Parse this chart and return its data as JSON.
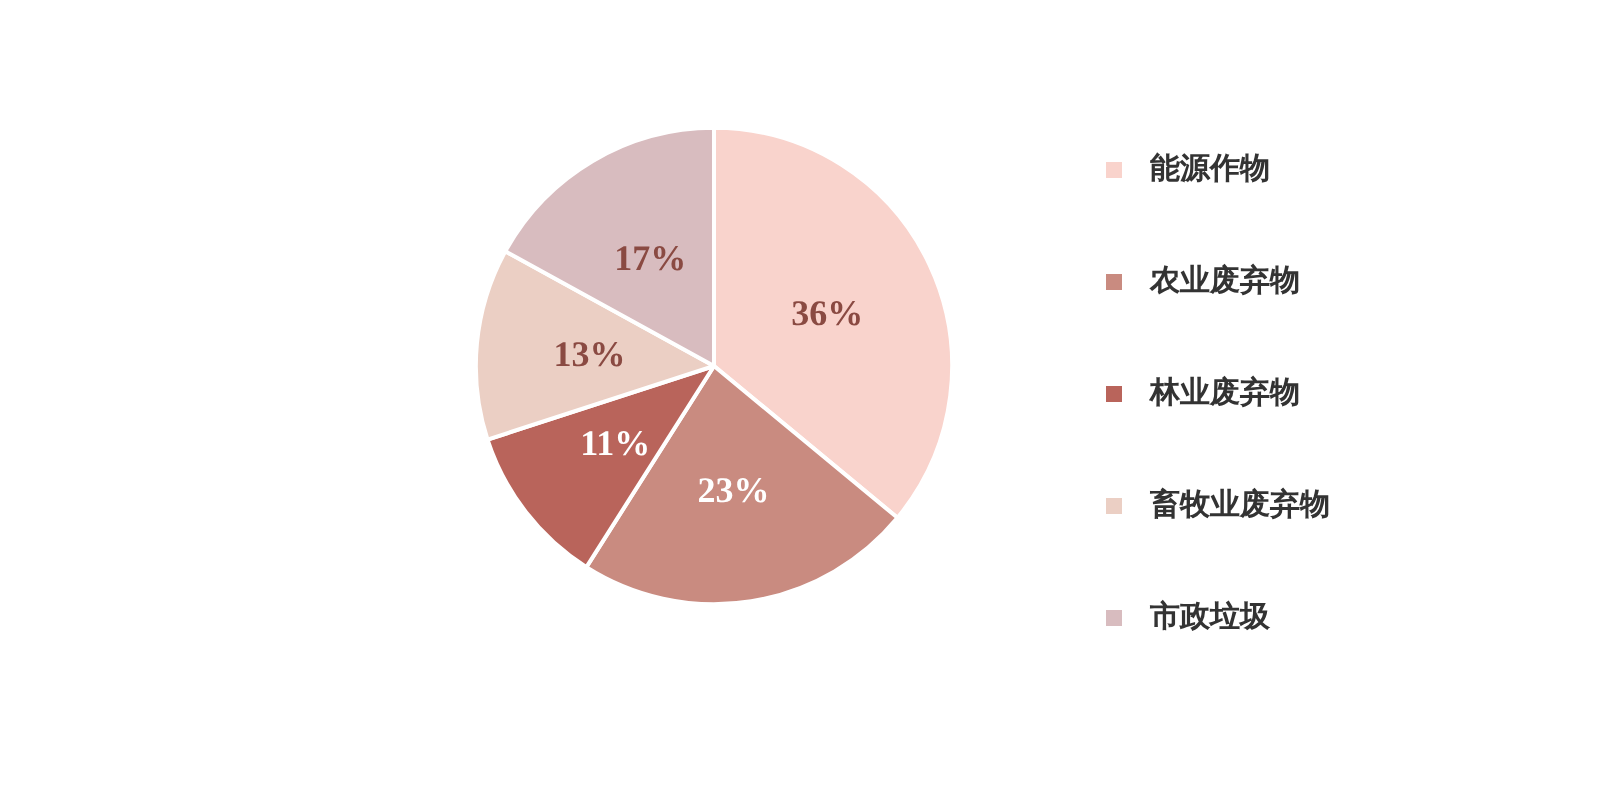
{
  "chart_data": {
    "type": "pie",
    "categories": [
      "能源作物",
      "农业废弃物",
      "林业废弃物",
      "畜牧业废弃物",
      "市政垃圾"
    ],
    "values": [
      36,
      23,
      11,
      13,
      17
    ],
    "colors": [
      "#f9d3cc",
      "#c98b80",
      "#b9645b",
      "#ebcfc4",
      "#d8bcbf"
    ],
    "value_labels": [
      "36%",
      "23%",
      "11%",
      "13%",
      "17%"
    ],
    "legend": "right"
  }
}
